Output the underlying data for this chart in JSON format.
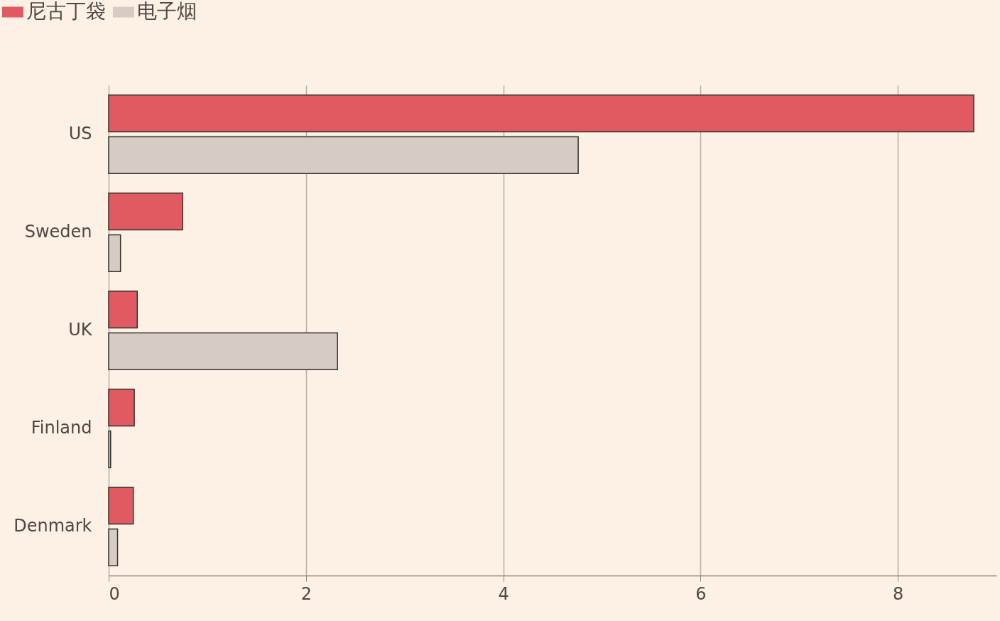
{
  "chart_data": {
    "type": "bar",
    "orientation": "horizontal",
    "categories": [
      "US",
      "Sweden",
      "UK",
      "Finland",
      "Denmark"
    ],
    "series": [
      {
        "name": "尼古丁袋",
        "color": "#e15a62",
        "values": [
          8.77,
          0.75,
          0.29,
          0.26,
          0.25
        ]
      },
      {
        "name": "电子烟",
        "color": "#d7ccc4",
        "values": [
          4.76,
          0.12,
          2.32,
          0.02,
          0.09
        ]
      }
    ],
    "xlim": [
      0,
      9
    ],
    "xticks": [
      0,
      2,
      4,
      6,
      8
    ],
    "grid": "x",
    "legend": "top left"
  }
}
